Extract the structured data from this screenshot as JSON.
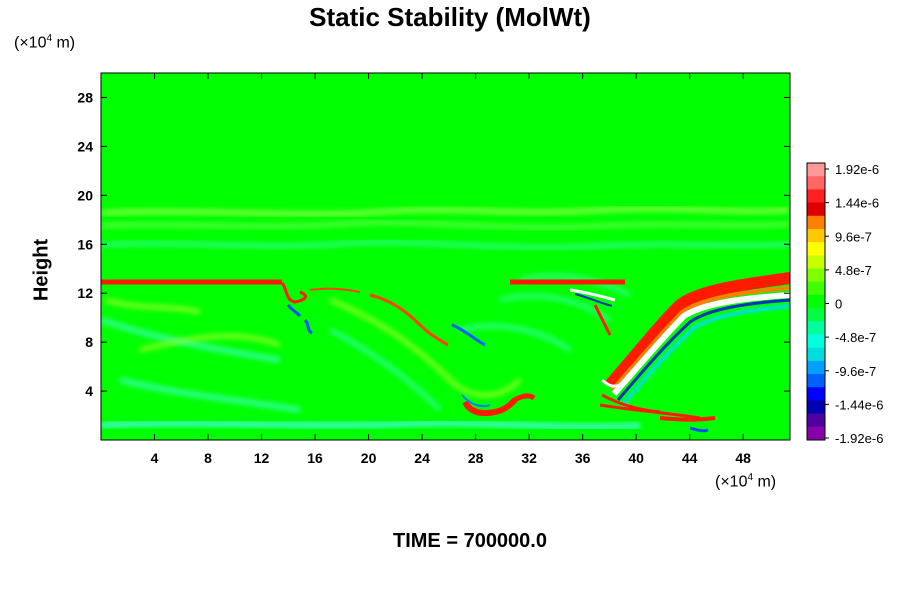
{
  "chart_data": {
    "type": "heatmap",
    "title": "Static Stability (MolWt)",
    "ylabel": "Height",
    "x_unit": {
      "prefix": "(×10",
      "exp": "4",
      "suffix": " m)"
    },
    "y_unit": {
      "prefix": "(×10",
      "exp": "4",
      "suffix": " m)"
    },
    "xlim": [
      0,
      51.5
    ],
    "ylim": [
      0,
      30
    ],
    "x_ticks": [
      4,
      8,
      12,
      16,
      20,
      24,
      28,
      32,
      36,
      40,
      44,
      48
    ],
    "y_ticks": [
      4,
      8,
      12,
      16,
      20,
      24,
      28
    ],
    "x_tick_labels": [
      "4",
      "8",
      "12",
      "16",
      "20",
      "24",
      "28",
      "32",
      "36",
      "40",
      "44",
      "48"
    ],
    "y_tick_labels": [
      "4",
      "8",
      "12",
      "16",
      "20",
      "24",
      "28"
    ],
    "colorbar": {
      "labels": [
        "1.92e-6",
        "1.44e-6",
        "9.6e-7",
        "4.8e-7",
        "0",
        "-4.8e-7",
        "-9.6e-7",
        "-1.44e-6",
        "-1.92e-6"
      ],
      "values": [
        1.92e-06,
        1.44e-06,
        9.6e-07,
        4.8e-07,
        0,
        -4.8e-07,
        -9.6e-07,
        -1.44e-06,
        -1.92e-06
      ],
      "colors_top_to_bottom": [
        "#ff9999",
        "#ff6666",
        "#ff2020",
        "#e00000",
        "#ff7f00",
        "#ffc800",
        "#ffff00",
        "#c8ff00",
        "#7fff00",
        "#40ff00",
        "#00ff00",
        "#00ff40",
        "#00ff9f",
        "#00ffdd",
        "#00dddd",
        "#00a0ff",
        "#0060ff",
        "#0000ff",
        "#0000b0",
        "#5000a0",
        "#8800aa"
      ]
    },
    "features": [
      {
        "value": "positive",
        "color": "#ff1a00",
        "x_range": [
          0,
          13
        ],
        "y": 13
      },
      {
        "value": "positive",
        "color": "#ff1a00",
        "x_range": [
          31,
          37
        ],
        "y": 13
      },
      {
        "value": "positive",
        "color": "#ff1a00",
        "x_range": [
          38.5,
          51.5
        ],
        "y_range": [
          4,
          13
        ]
      },
      {
        "value": "positive",
        "color": "#ff1a00",
        "x_range": [
          27,
          31
        ],
        "y": 2
      },
      {
        "value": "positive",
        "color": "#ff1a00",
        "x_range": [
          40,
          45
        ],
        "y": 2
      }
    ],
    "background_color": "#00ff00",
    "grid": false,
    "legend_position": "right"
  },
  "footer": {
    "time_label": "TIME = 700000.0"
  }
}
